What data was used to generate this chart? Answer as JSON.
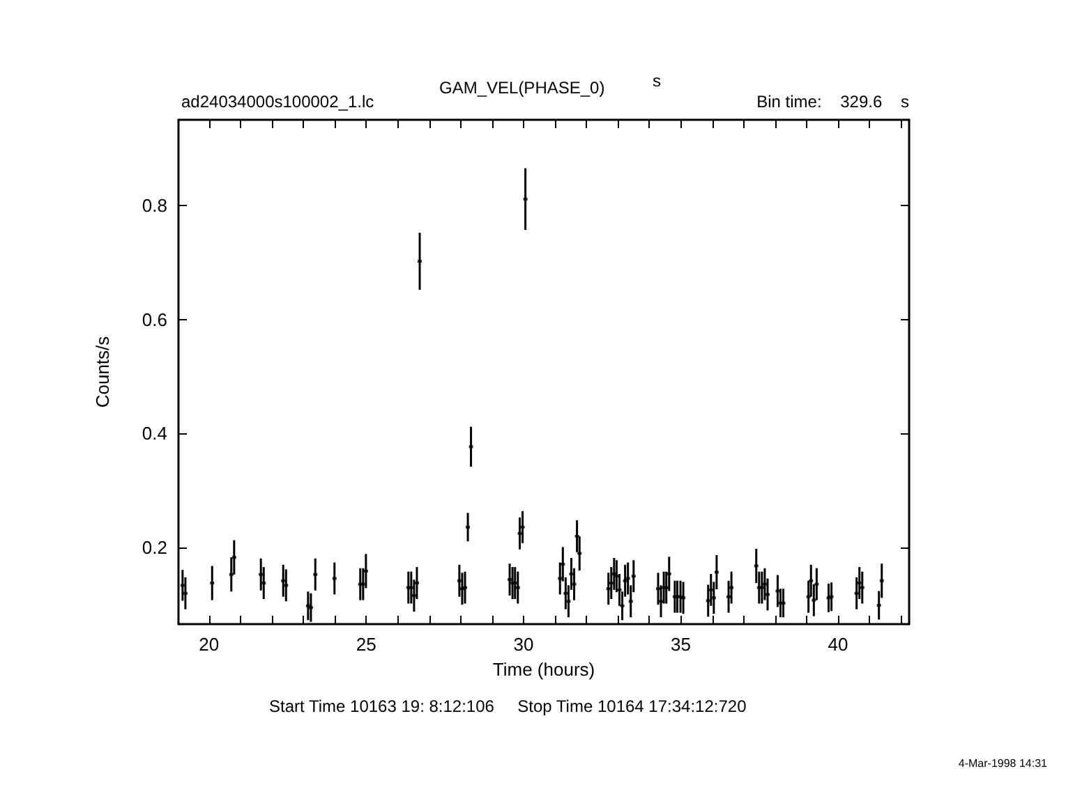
{
  "chart_data": {
    "type": "scatter",
    "title": "GAM_VEL(PHASE_0)",
    "subtitle": "s",
    "xlabel": "Time (hours)",
    "ylabel": "Counts/s",
    "annotations": [
      "ad24034000s100002_1.lc",
      "Bin time:    329.6    s",
      "Start Time 10163 19: 8:12:106     Stop Time 10164 17:34:12:720",
      "4-Mar-1998 14:31"
    ],
    "marker": "square",
    "grid": false,
    "xlim": [
      19.03,
      42.26
    ],
    "ylim": [
      0.066,
      0.95
    ],
    "xticks": [
      {
        "value": 20,
        "label": "20"
      },
      {
        "value": 21,
        "label": null
      },
      {
        "value": 22,
        "label": null
      },
      {
        "value": 23,
        "label": null
      },
      {
        "value": 24,
        "label": null
      },
      {
        "value": 25,
        "label": "25"
      },
      {
        "value": 26,
        "label": null
      },
      {
        "value": 27,
        "label": null
      },
      {
        "value": 28,
        "label": null
      },
      {
        "value": 29,
        "label": null
      },
      {
        "value": 30,
        "label": "30"
      },
      {
        "value": 31,
        "label": null
      },
      {
        "value": 32,
        "label": null
      },
      {
        "value": 33,
        "label": null
      },
      {
        "value": 34,
        "label": null
      },
      {
        "value": 35,
        "label": "35"
      },
      {
        "value": 36,
        "label": null
      },
      {
        "value": 37,
        "label": null
      },
      {
        "value": 38,
        "label": null
      },
      {
        "value": 39,
        "label": null
      },
      {
        "value": 40,
        "label": "40"
      },
      {
        "value": 41,
        "label": null
      },
      {
        "value": 42,
        "label": null
      }
    ],
    "yticks": [
      0.2,
      0.4,
      0.6,
      0.8
    ],
    "series": [
      {
        "color": "#000000",
        "x": [
          19.16,
          19.25,
          20.1,
          20.71,
          20.8,
          21.65,
          21.74,
          22.36,
          22.45,
          23.15,
          23.24,
          23.38,
          23.99,
          24.81,
          24.9,
          24.99,
          26.34,
          26.43,
          26.52,
          26.61,
          26.7,
          27.96,
          28.05,
          28.14,
          28.23,
          28.33,
          29.56,
          29.65,
          29.73,
          29.82,
          29.88,
          29.97,
          30.06,
          31.16,
          31.25,
          31.34,
          31.43,
          31.52,
          31.61,
          31.7,
          31.78,
          32.7,
          32.79,
          32.88,
          32.96,
          33.05,
          33.14,
          33.23,
          33.32,
          33.41,
          33.5,
          34.28,
          34.37,
          34.46,
          34.54,
          34.63,
          34.81,
          34.89,
          34.99,
          35.08,
          35.87,
          35.96,
          36.05,
          36.14,
          36.52,
          36.61,
          37.4,
          37.49,
          37.58,
          37.67,
          37.76,
          38.08,
          38.17,
          38.26,
          39.06,
          39.14,
          39.23,
          39.32,
          39.7,
          39.79,
          40.59,
          40.68,
          40.77,
          41.3,
          41.39
        ],
        "values": [
          0.134,
          0.12,
          0.138,
          0.153,
          0.183,
          0.153,
          0.138,
          0.142,
          0.134,
          0.098,
          0.095,
          0.153,
          0.146,
          0.136,
          0.136,
          0.159,
          0.13,
          0.13,
          0.116,
          0.138,
          0.702,
          0.142,
          0.128,
          0.13,
          0.236,
          0.377,
          0.144,
          0.138,
          0.138,
          0.13,
          0.225,
          0.236,
          0.811,
          0.146,
          0.171,
          0.12,
          0.106,
          0.154,
          0.136,
          0.22,
          0.19,
          0.128,
          0.138,
          0.154,
          0.15,
          0.126,
          0.098,
          0.142,
          0.146,
          0.106,
          0.15,
          0.128,
          0.106,
          0.13,
          0.13,
          0.154,
          0.114,
          0.114,
          0.114,
          0.112,
          0.107,
          0.126,
          0.112,
          0.157,
          0.114,
          0.13,
          0.168,
          0.13,
          0.13,
          0.136,
          0.118,
          0.124,
          0.103,
          0.103,
          0.114,
          0.142,
          0.108,
          0.136,
          0.112,
          0.114,
          0.12,
          0.138,
          0.13,
          0.099,
          0.142
        ],
        "errors": [
          0.027,
          0.028,
          0.03,
          0.03,
          0.03,
          0.028,
          0.028,
          0.028,
          0.028,
          0.025,
          0.025,
          0.028,
          0.028,
          0.028,
          0.028,
          0.03,
          0.028,
          0.028,
          0.028,
          0.028,
          0.05,
          0.028,
          0.028,
          0.028,
          0.025,
          0.035,
          0.028,
          0.028,
          0.028,
          0.028,
          0.028,
          0.028,
          0.054,
          0.028,
          0.03,
          0.028,
          0.028,
          0.028,
          0.028,
          0.028,
          0.03,
          0.028,
          0.028,
          0.028,
          0.028,
          0.028,
          0.025,
          0.028,
          0.028,
          0.028,
          0.028,
          0.028,
          0.028,
          0.028,
          0.028,
          0.03,
          0.028,
          0.028,
          0.028,
          0.028,
          0.028,
          0.028,
          0.028,
          0.03,
          0.028,
          0.028,
          0.03,
          0.028,
          0.028,
          0.028,
          0.028,
          0.028,
          0.025,
          0.025,
          0.028,
          0.028,
          0.028,
          0.028,
          0.025,
          0.025,
          0.028,
          0.028,
          0.028,
          0.025,
          0.03
        ]
      }
    ]
  }
}
